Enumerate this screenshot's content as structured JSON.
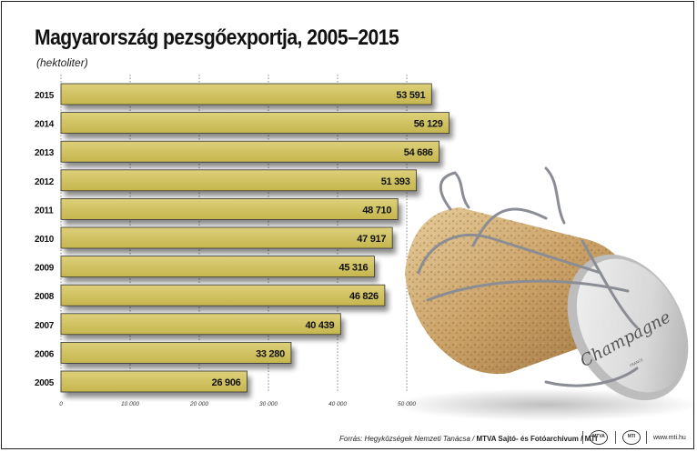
{
  "title": "Magyarország pezsgőexportja, 2005–2015",
  "subtitle": "(hektoliter)",
  "chart_data": {
    "type": "bar",
    "orientation": "horizontal",
    "title": "Magyarország pezsgőexportja, 2005–2015",
    "unit": "hektoliter",
    "categories": [
      "2015",
      "2014",
      "2013",
      "2012",
      "2011",
      "2010",
      "2009",
      "2008",
      "2007",
      "2006",
      "2005"
    ],
    "values": [
      53591,
      56129,
      54686,
      51393,
      48710,
      47917,
      45316,
      46826,
      40439,
      33280,
      26906
    ],
    "value_labels": [
      "53 591",
      "56 129",
      "54 686",
      "51 393",
      "48 710",
      "47 917",
      "45 316",
      "46 826",
      "40 439",
      "33 280",
      "26 906"
    ],
    "xlim": [
      0,
      50000
    ],
    "xticks": [
      0,
      10000,
      20000,
      30000,
      40000,
      50000
    ],
    "xtick_labels": [
      "0",
      "10 000",
      "20 000",
      "30 000",
      "40 000",
      "50 000"
    ],
    "grid": true,
    "bar_color": "#cfc15d"
  },
  "image": {
    "cork_label": "Champagne",
    "cork_sublabel": "FRANCE"
  },
  "footer": {
    "source_prefix": "Forrás: Hegyközségek Nemzeti Tanácsa / ",
    "source_bold": "MTVA Sajtó- és Fotóarchívum / MTI",
    "logo1": "MTVA",
    "logo2": "MTI",
    "website": "www.mti.hu"
  }
}
